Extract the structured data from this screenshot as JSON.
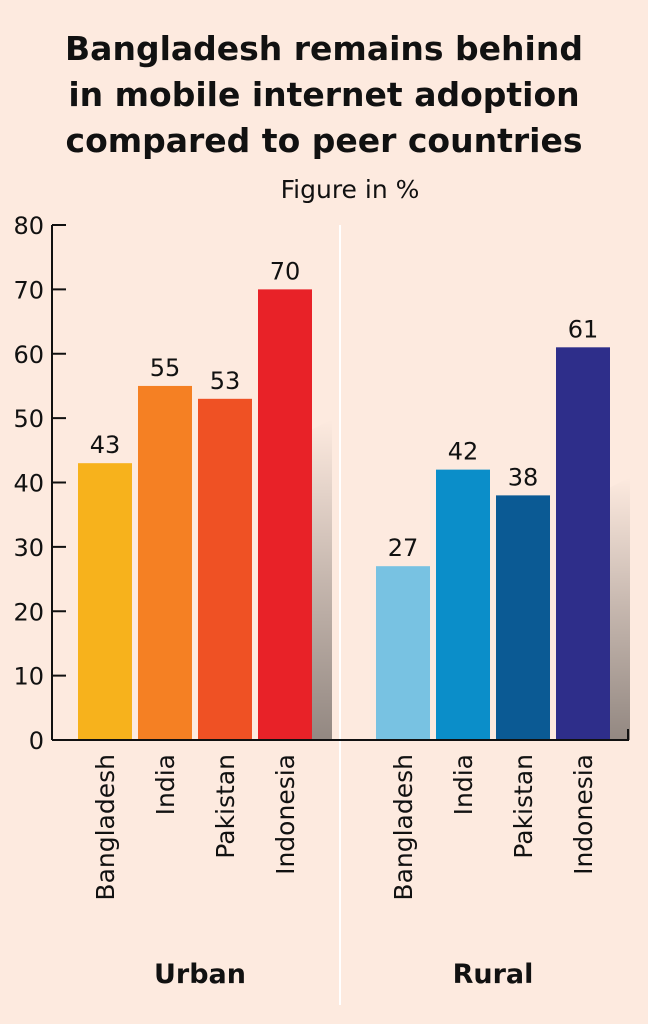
{
  "chart_data": {
    "type": "bar",
    "title_lines": [
      "Bangladesh remains behind",
      "in mobile internet adoption",
      "compared to peer countries"
    ],
    "subtitle": "Figure in %",
    "ylim": [
      0,
      80
    ],
    "yticks": [
      0,
      10,
      20,
      30,
      40,
      50,
      60,
      70,
      80
    ],
    "groups": [
      {
        "name": "Urban",
        "categories": [
          "Bangladesh",
          "India",
          "Pakistan",
          "Indonesia"
        ],
        "values": [
          43,
          55,
          53,
          70
        ],
        "colors": [
          "#f7b21c",
          "#f58023",
          "#ef5124",
          "#e82228"
        ]
      },
      {
        "name": "Rural",
        "categories": [
          "Bangladesh",
          "India",
          "Pakistan",
          "Indonesia"
        ],
        "values": [
          27,
          42,
          38,
          61
        ],
        "colors": [
          "#78c2e2",
          "#0b8ec9",
          "#0b5a94",
          "#2e2e8a"
        ]
      }
    ]
  }
}
